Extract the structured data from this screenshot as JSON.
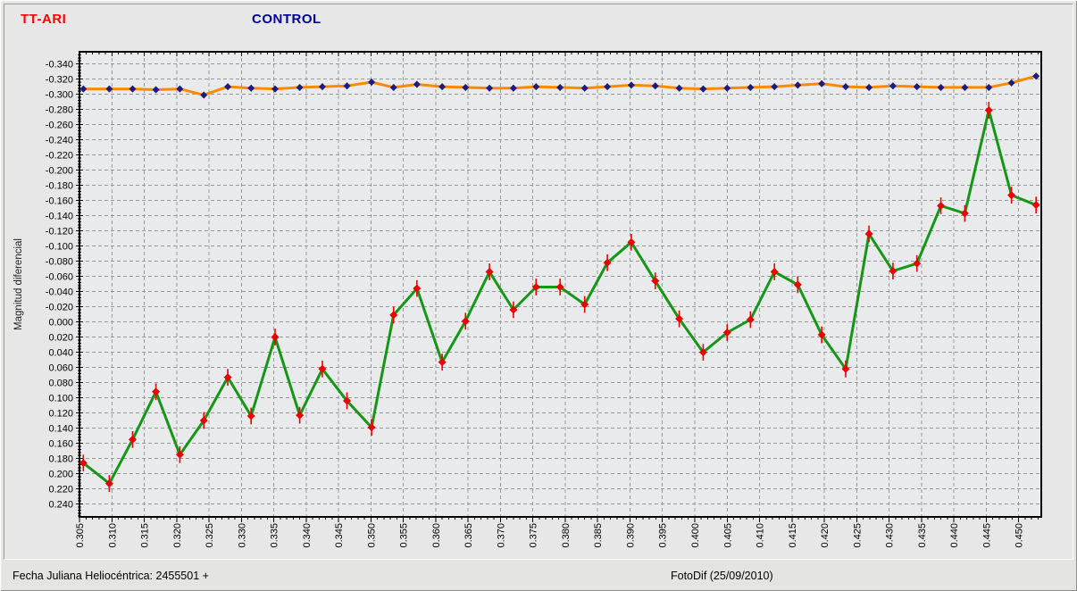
{
  "header": {
    "target_title": "TT-ARI",
    "target_color": "#ff0000",
    "control_title": "CONTROL",
    "control_color": "#000099"
  },
  "footer": {
    "left_text": "Fecha Juliana Heliocéntrica: 2455501 +",
    "right_text": "FotoDif (25/09/2010)"
  },
  "chart_data": {
    "type": "line",
    "title": "TT-ARI",
    "subtitle": "CONTROL",
    "xlabel": "Fecha Juliana Heliocéntrica: 2455501 +",
    "ylabel": "Magnitud diferencial",
    "grid": true,
    "y_axis_inverted": true,
    "xlim": [
      0.305,
      0.4535
    ],
    "ylim": [
      -0.356,
      0.257
    ],
    "x_ticks": [
      0.305,
      0.31,
      0.315,
      0.32,
      0.325,
      0.33,
      0.335,
      0.34,
      0.345,
      0.35,
      0.355,
      0.36,
      0.365,
      0.37,
      0.375,
      0.38,
      0.385,
      0.39,
      0.395,
      0.4,
      0.405,
      0.41,
      0.415,
      0.42,
      0.425,
      0.43,
      0.435,
      0.44,
      0.445,
      0.45
    ],
    "y_ticks": [
      -0.34,
      -0.32,
      -0.3,
      -0.28,
      -0.26,
      -0.24,
      -0.22,
      -0.2,
      -0.18,
      -0.16,
      -0.14,
      -0.12,
      -0.1,
      -0.08,
      -0.06,
      -0.04,
      -0.02,
      0.0,
      0.02,
      0.04,
      0.06,
      0.08,
      0.1,
      0.12,
      0.14,
      0.16,
      0.18,
      0.2,
      0.22,
      0.24
    ],
    "x_minor_step": 0.001,
    "y_minor_step": 0.004,
    "grid_color": "#999999",
    "x": [
      0.3056,
      0.3096,
      0.3132,
      0.3168,
      0.3205,
      0.3242,
      0.3279,
      0.3315,
      0.3352,
      0.339,
      0.3425,
      0.3463,
      0.3501,
      0.3535,
      0.3571,
      0.361,
      0.3646,
      0.3683,
      0.372,
      0.3755,
      0.3792,
      0.383,
      0.3865,
      0.3902,
      0.3939,
      0.3976,
      0.4013,
      0.405,
      0.4086,
      0.4123,
      0.4159,
      0.4196,
      0.4233,
      0.4269,
      0.4306,
      0.4343,
      0.438,
      0.4417,
      0.4454,
      0.4489,
      0.4527
    ],
    "series": [
      {
        "name": "TT-ARI",
        "line_color": "#169616",
        "marker": "diamond",
        "marker_color": "#ec0000",
        "err": 0.011,
        "values": [
          0.186,
          0.213,
          0.155,
          0.092,
          0.175,
          0.13,
          0.073,
          0.124,
          0.02,
          0.123,
          0.062,
          0.104,
          0.139,
          -0.009,
          -0.044,
          0.053,
          -0.001,
          -0.066,
          -0.016,
          -0.046,
          -0.046,
          -0.023,
          -0.078,
          -0.105,
          -0.054,
          -0.004,
          0.04,
          0.014,
          -0.003,
          -0.066,
          -0.049,
          0.017,
          0.062,
          -0.116,
          -0.067,
          -0.077,
          -0.153,
          -0.143,
          -0.279,
          -0.167,
          -0.154
        ]
      },
      {
        "name": "CONTROL",
        "line_color": "#ff8a00",
        "marker": "diamond",
        "marker_color": "#1c1c80",
        "err": 0.004,
        "values": [
          -0.307,
          -0.307,
          -0.307,
          -0.306,
          -0.307,
          -0.299,
          -0.31,
          -0.308,
          -0.307,
          -0.309,
          -0.31,
          -0.311,
          -0.316,
          -0.309,
          -0.313,
          -0.31,
          -0.309,
          -0.308,
          -0.308,
          -0.31,
          -0.309,
          -0.308,
          -0.31,
          -0.312,
          -0.311,
          -0.308,
          -0.307,
          -0.308,
          -0.309,
          -0.31,
          -0.312,
          -0.314,
          -0.31,
          -0.309,
          -0.311,
          -0.31,
          -0.309,
          -0.309,
          -0.309,
          -0.315,
          -0.324
        ]
      }
    ]
  }
}
